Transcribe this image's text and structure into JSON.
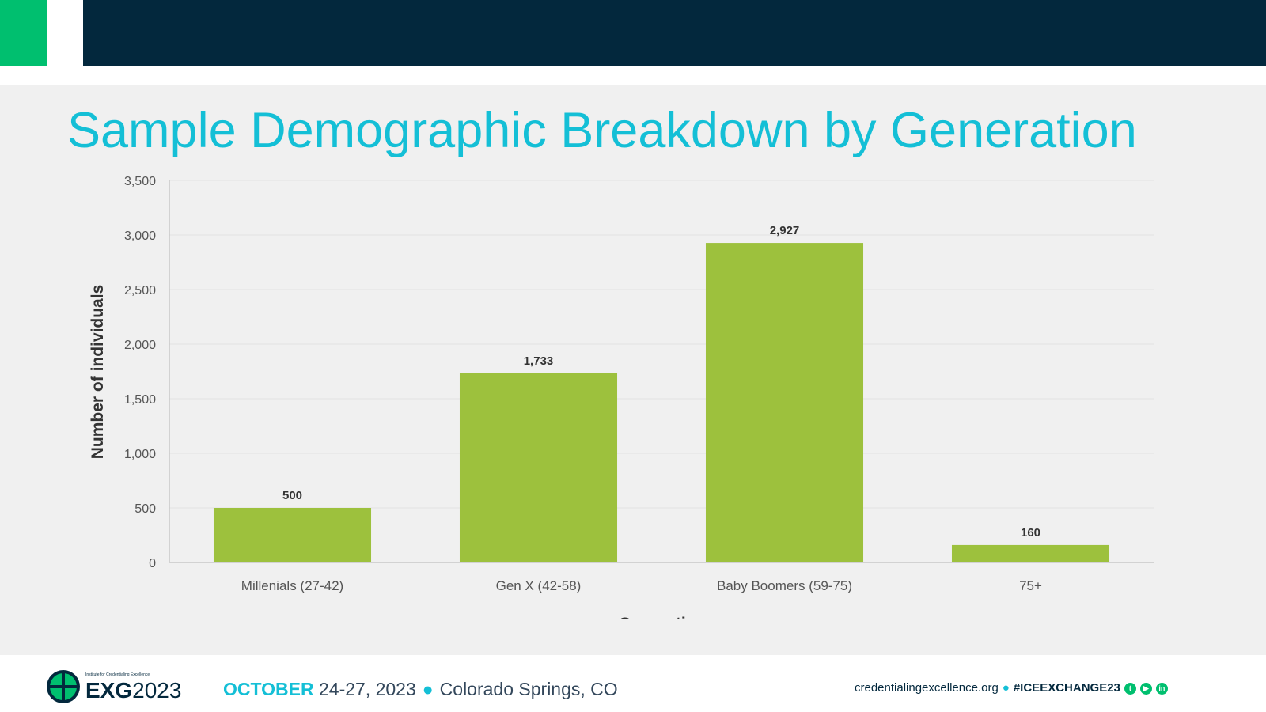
{
  "slide": {
    "title": "Sample Demographic Breakdown by Generation"
  },
  "chart_data": {
    "type": "bar",
    "title": "Sample Demographic Breakdown by Generation",
    "categories": [
      "Millenials (27-42)",
      "Gen X (42-58)",
      "Baby Boomers (59-75)",
      "75+"
    ],
    "values": [
      500,
      1733,
      2927,
      160
    ],
    "data_labels": [
      "500",
      "1,733",
      "2,927",
      "160"
    ],
    "xlabel": "Generation",
    "ylabel": "Number of individuals",
    "ylim": [
      0,
      3500
    ],
    "yticks": [
      0,
      500,
      1000,
      1500,
      2000,
      2500,
      3000,
      3500
    ],
    "ytick_labels": [
      "0",
      "500",
      "1,000",
      "1,500",
      "2,000",
      "2,500",
      "3,000",
      "3,500"
    ],
    "grid": true,
    "bar_color": "#9dc13d"
  },
  "footer": {
    "logo_small": "Institute for Credentialing Excellence",
    "logo_bold": "EXG",
    "logo_year": "2023",
    "month": "OCTOBER",
    "dates": "24-27, 2023",
    "location": "Colorado Springs, CO",
    "website": "credentialingexcellence.org",
    "hashtag": "#ICEEXCHANGE23",
    "social_icons": [
      "twitter-icon",
      "youtube-icon",
      "linkedin-icon"
    ]
  },
  "colors": {
    "accent_green": "#00bf6f",
    "navy": "#03283d",
    "title_cyan": "#14bfd6"
  }
}
